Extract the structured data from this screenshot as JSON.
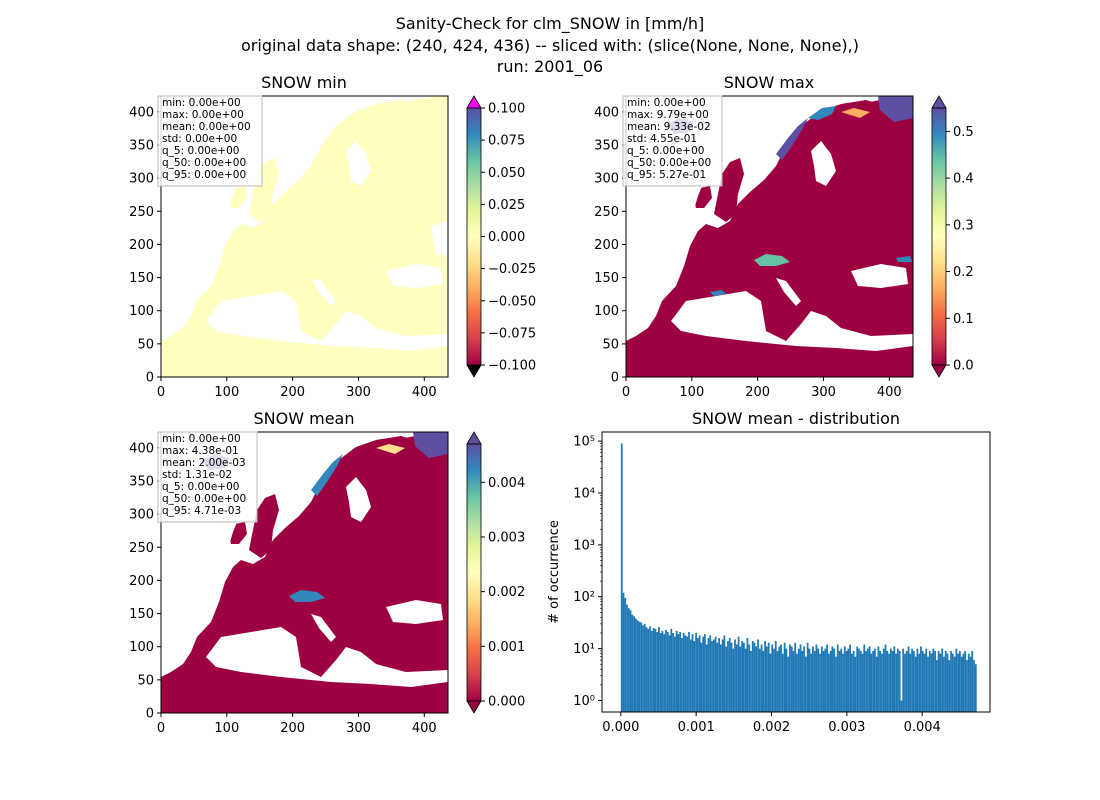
{
  "figure": {
    "title_lines": [
      "Sanity-Check for clm_SNOW in [mm/h]",
      "original data shape: (240, 424, 436) -- sliced with: (slice(None, None, None),)",
      "run: 2001_06"
    ]
  },
  "colors": {
    "spectral": [
      "#9e0142",
      "#d53e4f",
      "#f46d43",
      "#fdae61",
      "#fee08b",
      "#ffffbf",
      "#e6f598",
      "#abdda4",
      "#66c2a5",
      "#3288bd",
      "#5e4fa2"
    ],
    "over_color_min_panel": "#ff00ff",
    "under_color_min_panel": "#000000",
    "land_min_panel": "#ffffbf",
    "land_max_mean_panels": "#9e0142",
    "histogram_bar": "#1f77b4"
  },
  "chart_data": [
    {
      "type": "heatmap",
      "title": "SNOW min",
      "xlim": [
        0,
        436
      ],
      "ylim": [
        0,
        424
      ],
      "xticks": [
        "0",
        "100",
        "200",
        "300",
        "400"
      ],
      "yticks": [
        "0",
        "50",
        "100",
        "150",
        "200",
        "250",
        "300",
        "350",
        "400"
      ],
      "colorbar": {
        "min": -0.1,
        "max": 0.1,
        "extend": "both",
        "ticks": [
          "0.100",
          "0.075",
          "0.050",
          "0.025",
          "0.000",
          "−0.025",
          "−0.050",
          "−0.075",
          "−0.100"
        ]
      },
      "stats": [
        "min: 0.00e+00",
        "max: 0.00e+00",
        "mean: 0.00e+00",
        "std: 0.00e+00",
        "q_5: 0.00e+00",
        "q_50: 0.00e+00",
        "q_95: 0.00e+00"
      ]
    },
    {
      "type": "heatmap",
      "title": "SNOW max",
      "xlim": [
        0,
        436
      ],
      "ylim": [
        0,
        424
      ],
      "xticks": [
        "0",
        "100",
        "200",
        "300",
        "400"
      ],
      "yticks": [
        "0",
        "50",
        "100",
        "150",
        "200",
        "250",
        "300",
        "350",
        "400"
      ],
      "colorbar": {
        "min": 0.0,
        "max": 0.55,
        "extend": "both",
        "ticks": [
          "0.5",
          "0.4",
          "0.3",
          "0.2",
          "0.1",
          "0.0"
        ]
      },
      "stats": [
        "min: 0.00e+00",
        "max: 9.79e+00",
        "mean: 9.33e-02",
        "std: 4.55e-01",
        "q_5: 0.00e+00",
        "q_50: 0.00e+00",
        "q_95: 5.27e-01"
      ]
    },
    {
      "type": "heatmap",
      "title": "SNOW mean",
      "xlim": [
        0,
        436
      ],
      "ylim": [
        0,
        424
      ],
      "xticks": [
        "0",
        "100",
        "200",
        "300",
        "400"
      ],
      "yticks": [
        "0",
        "50",
        "100",
        "150",
        "200",
        "250",
        "300",
        "350",
        "400"
      ],
      "colorbar": {
        "min": 0.0,
        "max": 0.0047,
        "extend": "both",
        "ticks": [
          "0.004",
          "0.003",
          "0.002",
          "0.001",
          "0.000"
        ]
      },
      "stats": [
        "min: 0.00e+00",
        "max: 4.38e-01",
        "mean: 2.00e-03",
        "std: 1.31e-02",
        "q_5: 0.00e+00",
        "q_50: 0.00e+00",
        "q_95: 4.71e-03"
      ]
    },
    {
      "type": "bar",
      "title": "SNOW mean - distribution",
      "ylabel": "# of occurrence",
      "yscale": "log",
      "xlim": [
        -0.00025,
        0.0049
      ],
      "ylim": [
        0.6,
        150000
      ],
      "xticks": [
        "0.000",
        "0.001",
        "0.002",
        "0.003",
        "0.004"
      ],
      "yticks": [
        "10⁰",
        "10¹",
        "10²",
        "10³",
        "10⁴",
        "10⁵"
      ],
      "bin_start": 0.0,
      "bin_width": 2.35e-05,
      "counts": [
        90000,
        120,
        95,
        70,
        60,
        55,
        45,
        42,
        38,
        35,
        33,
        32,
        28,
        30,
        26,
        24,
        27,
        22,
        25,
        24,
        21,
        26,
        20,
        22,
        19,
        23,
        21,
        18,
        24,
        20,
        17,
        22,
        19,
        21,
        16,
        20,
        18,
        17,
        21,
        15,
        19,
        14,
        20,
        16,
        18,
        13,
        17,
        19,
        12,
        16,
        18,
        14,
        15,
        17,
        13,
        16,
        12,
        15,
        18,
        11,
        14,
        16,
        13,
        10,
        15,
        12,
        17,
        11,
        14,
        13,
        10,
        16,
        12,
        9,
        14,
        13,
        11,
        15,
        10,
        12,
        9,
        14,
        11,
        13,
        8,
        12,
        10,
        14,
        9,
        11,
        12,
        8,
        13,
        10,
        7,
        12,
        11,
        9,
        13,
        8,
        10,
        12,
        9,
        11,
        7,
        13,
        10,
        8,
        11,
        9,
        12,
        10,
        8,
        11,
        9,
        10,
        12,
        8,
        9,
        11,
        10,
        7,
        12,
        9,
        10,
        8,
        11,
        9,
        10,
        12,
        8,
        9,
        7,
        11,
        10,
        9,
        8,
        12,
        9,
        10,
        11,
        8,
        9,
        10,
        7,
        11,
        9,
        8,
        10,
        12,
        9,
        8,
        10,
        9,
        11,
        8,
        10,
        9,
        1,
        10,
        8,
        9,
        11,
        8,
        10,
        9,
        7,
        10,
        8,
        11,
        9,
        8,
        10,
        7,
        9,
        8,
        10,
        9,
        6,
        9,
        8,
        10,
        7,
        9,
        8,
        6,
        9,
        8,
        7,
        10,
        8,
        9,
        7,
        8,
        9,
        6,
        8,
        7,
        9,
        6,
        5
      ]
    }
  ]
}
